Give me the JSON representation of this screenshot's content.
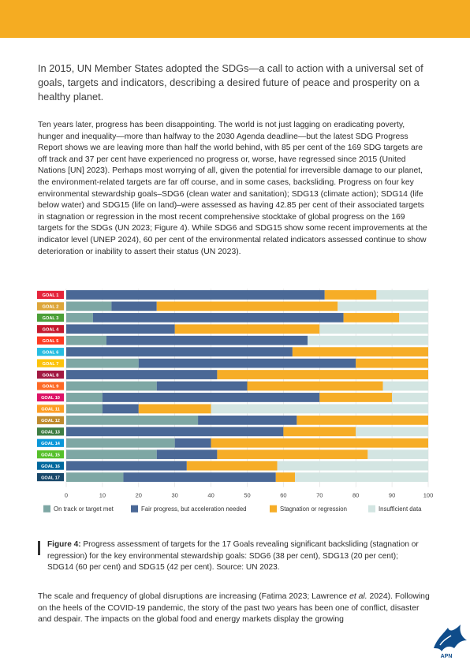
{
  "intro": "In 2015, UN Member States adopted the SDGs—a call to action with a universal set of goals, targets and indicators, describing a desired future of peace and prosperity on a healthy planet.",
  "body1": "Ten years later, progress has been disappointing. The world is not just lagging on eradicating poverty, hunger and inequality—more than halfway to the 2030 Agenda deadline—but the latest SDG Progress Report shows we are leaving more than half the world behind, with 85 per cent of the 169 SDG targets are off track and 37 per cent have experienced no progress or, worse, have regressed since 2015 (United Nations [UN] 2023). Perhaps most worrying of all, given the potential for irreversible damage to our planet, the environment-related targets are far off course, and in some cases, backsliding. Progress on four key environmental stewardship goals–SDG6 (clean water and sanitation); SDG13 (climate action); SDG14 (life below water) and SDG15 (life on land)–were assessed as having 42.85 per cent of their associated targets in stagnation or regression in the most recent comprehensive stocktake of global progress on the 169 targets for the SDGs (UN 2023; Figure 4). While SDG6 and SDG15 show some recent improvements at the indicator level (UNEP 2024), 60 per cent of the environmental related indicators assessed continue to show deterioration or inability to assert their status (UN 2023).",
  "caption": {
    "label": "Figure 4:",
    "text": " Progress assessment of targets for the 17 Goals revealing significant backsliding (stagnation or regression) for the key environmental stewardship goals: SDG6 (38 per cent), SDG13 (20 per cent); SDG14 (60 per cent) and SDG15 (42 per cent). Source: UN 2023."
  },
  "body2": {
    "before": "The scale and frequency of global disruptions are increasing (Fatima 2023; Lawrence ",
    "italic": "et al.",
    "after": " 2024). Following on the heels of the COVID-19 pandemic, the story of the past two years has been one of conflict, disaster and despair. The impacts on the global food and energy markets display the growing"
  },
  "logo_text": "APN",
  "chart_data": {
    "type": "bar",
    "orientation": "horizontal",
    "stacked": true,
    "categories": [
      "GOAL 1",
      "GOAL 2",
      "GOAL 3",
      "GOAL 4",
      "GOAL 5",
      "GOAL 6",
      "GOAL 7",
      "GOAL 8",
      "GOAL 9",
      "GOAL 10",
      "GOAL 11",
      "GOAL 12",
      "GOAL 13",
      "GOAL 14",
      "GOAL 15",
      "GOAL 16",
      "GOAL 17"
    ],
    "category_colors": [
      "#e5243b",
      "#dda63a",
      "#4c9f38",
      "#c5192d",
      "#ff3a21",
      "#26bde2",
      "#fcc30b",
      "#a21942",
      "#fd6925",
      "#dd1367",
      "#fd9d24",
      "#bf8b2e",
      "#3f7e44",
      "#0a97d9",
      "#56c02b",
      "#00689d",
      "#19486a"
    ],
    "series": [
      {
        "name": "On track or target met",
        "color": "#7ea7a4",
        "values": [
          0,
          12.5,
          7.4,
          0,
          11.1,
          0,
          20,
          0,
          25,
          10,
          10,
          36.4,
          0,
          30,
          25,
          0,
          15.8
        ]
      },
      {
        "name": "Fair progress, but acceleration needed",
        "color": "#4a6896",
        "values": [
          71.4,
          12.5,
          69.2,
          30,
          55.6,
          62.5,
          60,
          41.7,
          25,
          60,
          10,
          27.3,
          60,
          10,
          16.7,
          33.3,
          42.1
        ]
      },
      {
        "name": "Stagnation or regression",
        "color": "#f6ad27",
        "values": [
          14.3,
          50,
          15.4,
          40,
          0,
          37.5,
          20,
          58.3,
          37.5,
          20,
          20,
          36.3,
          20,
          60,
          41.6,
          25,
          5.3
        ]
      },
      {
        "name": "Insufficient data",
        "color": "#d3e5e2",
        "values": [
          14.3,
          25,
          8,
          30,
          33.3,
          0,
          0,
          0,
          12.5,
          10,
          60,
          0,
          20,
          0,
          16.7,
          41.7,
          36.8
        ]
      }
    ],
    "xticks": [
      "0",
      "10",
      "20",
      "30",
      "40",
      "50",
      "60",
      "70",
      "80",
      "90",
      "100"
    ],
    "xlim": [
      0,
      100
    ],
    "grid": true,
    "legend_position": "bottom"
  }
}
